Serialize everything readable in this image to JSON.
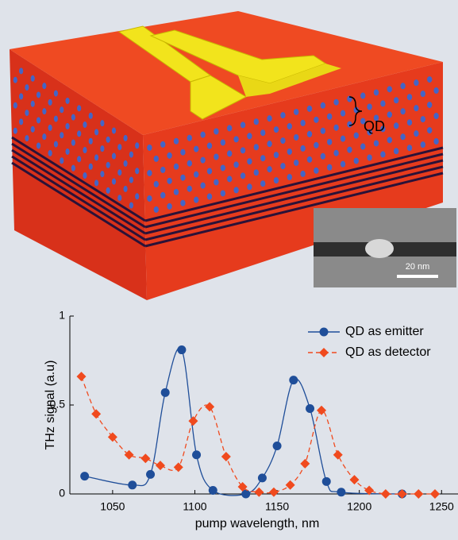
{
  "illustration": {
    "layer_label": "QD",
    "scale_bar": "20 nm"
  },
  "chart_data": {
    "type": "line",
    "xlabel": "pump wavelength, nm",
    "ylabel": "THz signal (a.u)",
    "xlim": [
      1024,
      1260
    ],
    "ylim": [
      0,
      1
    ],
    "xticks": [
      1050,
      1100,
      1150,
      1200,
      1250
    ],
    "yticks": [
      0,
      0.5,
      1
    ],
    "legend": "upper right",
    "series": [
      {
        "name": "QD as emitter",
        "color": "#1f4e99",
        "marker": "circle",
        "dashed": false,
        "x": [
          1033,
          1062,
          1073,
          1082,
          1092,
          1101,
          1111,
          1131,
          1141,
          1150,
          1160,
          1170,
          1180,
          1189,
          1226
        ],
        "values": [
          0.1,
          0.05,
          0.11,
          0.57,
          0.81,
          0.22,
          0.02,
          0,
          0.09,
          0.27,
          0.64,
          0.48,
          0.07,
          0.01,
          0
        ]
      },
      {
        "name": "QD as detector",
        "color": "#f04a1e",
        "marker": "diamond",
        "dashed": true,
        "x": [
          1031,
          1040,
          1050,
          1060,
          1070,
          1079,
          1090,
          1099,
          1109,
          1119,
          1129,
          1139,
          1148,
          1158,
          1167,
          1177,
          1187,
          1197,
          1206,
          1216,
          1226,
          1236,
          1246
        ],
        "values": [
          0.66,
          0.45,
          0.32,
          0.22,
          0.2,
          0.16,
          0.15,
          0.41,
          0.49,
          0.21,
          0.04,
          0.01,
          0.01,
          0.05,
          0.17,
          0.47,
          0.22,
          0.08,
          0.02,
          0,
          0,
          0,
          0
        ]
      }
    ]
  }
}
